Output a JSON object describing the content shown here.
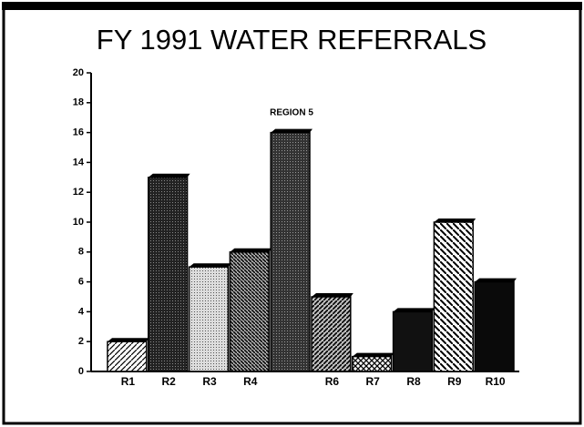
{
  "chart_data": {
    "type": "bar",
    "title": "FY 1991 WATER REFERRALS",
    "annotation": "REGION 5",
    "categories": [
      "R1",
      "R2",
      "R3",
      "R4",
      null,
      "R6",
      "R7",
      "R8",
      "R9",
      "R10"
    ],
    "values": [
      2,
      13,
      7,
      8,
      16,
      5,
      1,
      4,
      10,
      6
    ],
    "color": "#000000",
    "ylim": [
      0,
      20
    ],
    "yticks": [
      0,
      2,
      4,
      6,
      8,
      10,
      12,
      14,
      16,
      18,
      20
    ]
  }
}
